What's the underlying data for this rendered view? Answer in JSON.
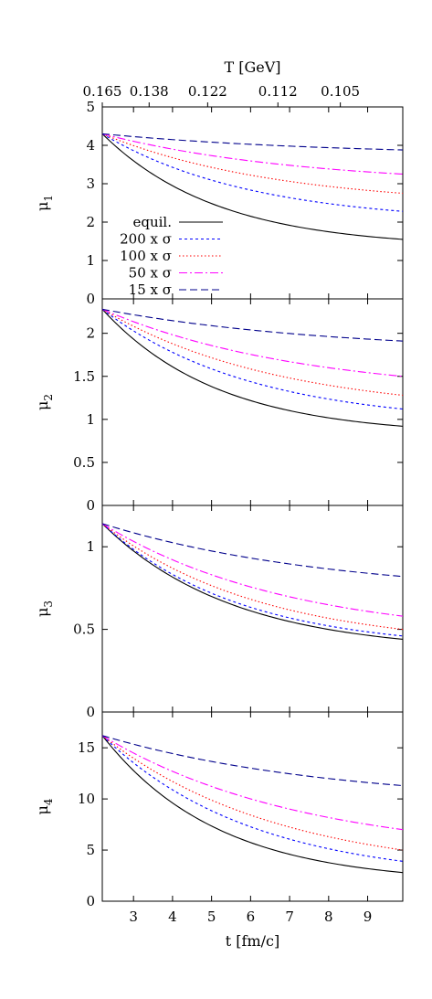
{
  "chart_data": {
    "type": "line",
    "top_axis": {
      "label": "T [GeV]",
      "ticks": [
        {
          "t": 2.2,
          "label": "0.165"
        },
        {
          "t": 3.4,
          "label": "0.138"
        },
        {
          "t": 4.9,
          "label": "0.122"
        },
        {
          "t": 6.7,
          "label": "0.112"
        },
        {
          "t": 8.3,
          "label": "0.105"
        }
      ]
    },
    "xlabel": "t [fm/c]",
    "xlim": [
      2.2,
      9.9
    ],
    "xticks": [
      3,
      4,
      5,
      6,
      7,
      8,
      9
    ],
    "legend": {
      "placement": "bottom-left",
      "entries": [
        {
          "label": "equil.",
          "color": "#000000",
          "dash": "solid"
        },
        {
          "label": "200 x σ",
          "color": "#0000ff",
          "dash": "short-dash"
        },
        {
          "label": "100 x σ",
          "color": "#ff0000",
          "dash": "dotted"
        },
        {
          "label": "50 x σ",
          "color": "#ff00ff",
          "dash": "dash-dot"
        },
        {
          "label": "15 x σ",
          "color": "#00008b",
          "dash": "long-dash"
        }
      ]
    },
    "panels": [
      {
        "ylabel": "μ",
        "ylabel_sub": "1",
        "ylim": [
          0,
          5
        ],
        "yticks": [
          "0",
          "1",
          "2",
          "3",
          "4",
          "5"
        ],
        "start": 4.3,
        "end_values": [
          1.55,
          2.28,
          2.75,
          3.25,
          3.88
        ],
        "shape": [
          2.6,
          2.0,
          1.7,
          1.5,
          1.3
        ]
      },
      {
        "ylabel": "μ",
        "ylabel_sub": "2",
        "ylim": [
          0,
          2.4
        ],
        "yticks": [
          "0",
          "0.5",
          "1",
          "1.5",
          "2"
        ],
        "start": 2.28,
        "end_values": [
          0.92,
          1.12,
          1.28,
          1.5,
          1.91
        ],
        "shape": [
          2.6,
          2.0,
          1.7,
          1.5,
          1.3
        ]
      },
      {
        "ylabel": "μ",
        "ylabel_sub": "3",
        "ylim": [
          0,
          1.25
        ],
        "yticks": [
          "0",
          "0.5",
          "1"
        ],
        "start": 1.14,
        "end_values": [
          0.44,
          0.46,
          0.5,
          0.58,
          0.82
        ],
        "shape": [
          2.3,
          2.2,
          1.9,
          1.6,
          1.3
        ]
      },
      {
        "ylabel": "μ",
        "ylabel_sub": "4",
        "ylim": [
          0,
          18.5
        ],
        "yticks": [
          "0",
          "5",
          "10",
          "15"
        ],
        "start": 16.2,
        "end_values": [
          2.8,
          3.9,
          5.0,
          7.0,
          11.3
        ],
        "shape": [
          2.6,
          2.0,
          1.7,
          1.5,
          1.3
        ]
      }
    ]
  }
}
